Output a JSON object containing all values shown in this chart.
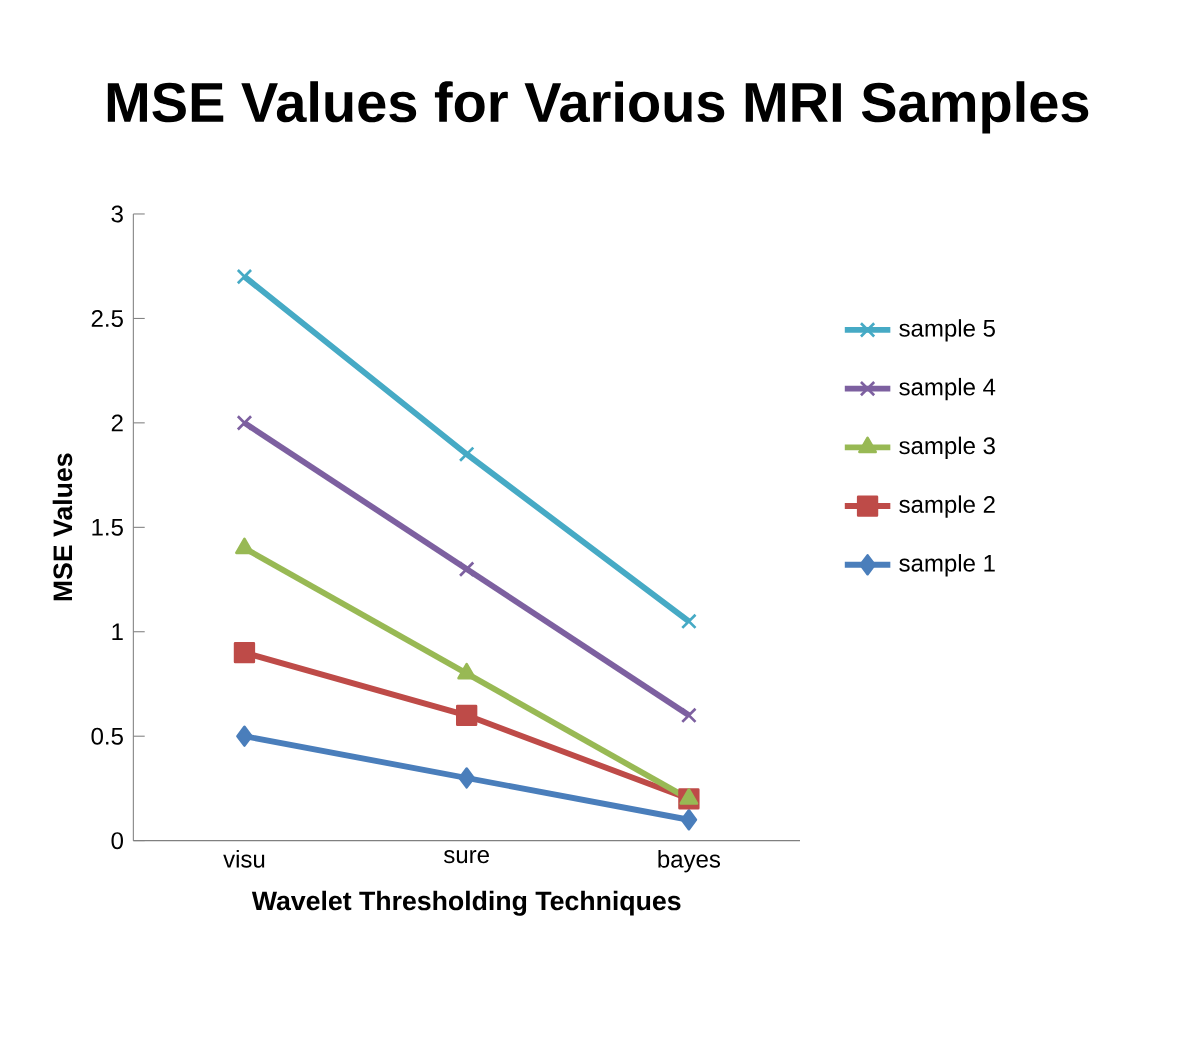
{
  "chart_data": {
    "type": "line",
    "title": "MSE Values for Various MRI Samples",
    "xlabel": "Wavelet Thresholding Techniques",
    "ylabel": "MSE Values",
    "categories": [
      "visu",
      "sure",
      "bayes"
    ],
    "series": [
      {
        "name": "sample 1",
        "color": "#4a7ebb",
        "marker": "diamond",
        "values": [
          0.5,
          0.3,
          0.1
        ]
      },
      {
        "name": "sample 2",
        "color": "#be4b48",
        "marker": "square",
        "values": [
          0.9,
          0.6,
          0.2
        ]
      },
      {
        "name": "sample 3",
        "color": "#98b954",
        "marker": "triangle",
        "values": [
          1.4,
          0.8,
          0.2
        ]
      },
      {
        "name": "sample 4",
        "color": "#7d60a0",
        "marker": "cross",
        "values": [
          2.0,
          1.3,
          0.6
        ]
      },
      {
        "name": "sample 5",
        "color": "#46aac5",
        "marker": "cross",
        "values": [
          2.7,
          1.85,
          1.05
        ]
      }
    ],
    "ylim": [
      0,
      3
    ],
    "yticks": [
      0,
      0.5,
      1,
      1.5,
      2,
      2.5,
      3
    ],
    "grid": false,
    "legend": "right",
    "line_style": "solid"
  }
}
